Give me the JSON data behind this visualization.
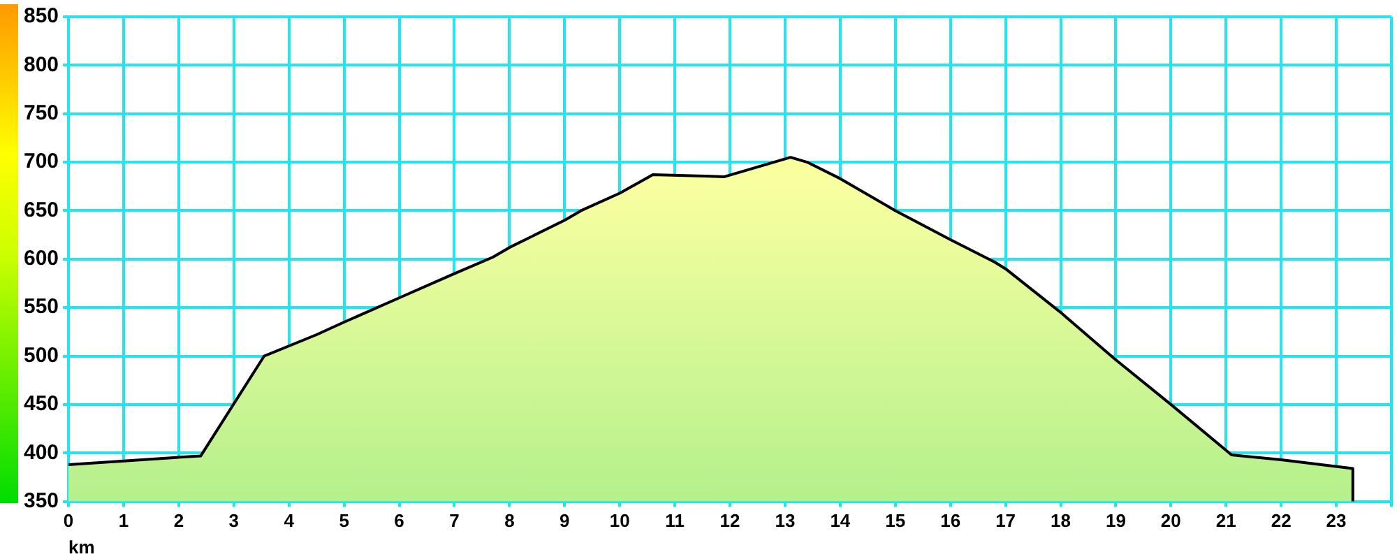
{
  "chart_data": {
    "type": "area",
    "xlabel": "km",
    "x": [
      0,
      2.4,
      3.55,
      4.5,
      5,
      6,
      7,
      7.7,
      8,
      9,
      9.3,
      10,
      10.6,
      11.9,
      13.1,
      13.4,
      14,
      15,
      16,
      16.8,
      17,
      18,
      19,
      20,
      21.1,
      22,
      23.3,
      23.3
    ],
    "series": [
      {
        "color": "#b4f08c",
        "values": [
          388,
          397,
          500,
          522,
          535,
          560,
          585,
          602,
          612,
          640,
          650,
          668,
          687,
          685,
          705,
          700,
          683,
          650,
          620,
          597,
          590,
          545,
          496,
          450,
          398,
          393,
          384,
          350
        ]
      }
    ],
    "xlim": [
      0,
      24
    ],
    "xticks": [
      0,
      1,
      2,
      3,
      4,
      5,
      6,
      7,
      8,
      9,
      10,
      11,
      12,
      13,
      14,
      15,
      16,
      17,
      18,
      19,
      20,
      21,
      22,
      23,
      {
        "value": 24,
        "label": null
      }
    ],
    "ylim": [
      350,
      850
    ],
    "yticks": [
      350,
      400,
      450,
      500,
      550,
      600,
      650,
      700,
      750,
      800,
      850
    ],
    "grid": true,
    "legend": false,
    "marker": "none",
    "line_style": "solid"
  }
}
